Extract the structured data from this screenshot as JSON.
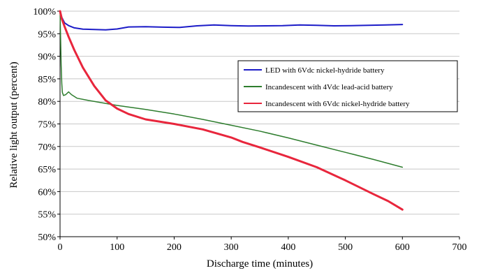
{
  "chart_data": {
    "type": "line",
    "title": "",
    "xlabel": "Discharge time (minutes)",
    "ylabel": "Relative light output (percent)",
    "xlim": [
      0,
      700
    ],
    "ylim": [
      50,
      100
    ],
    "x_ticks": [
      0,
      100,
      200,
      300,
      400,
      500,
      600,
      700
    ],
    "x_tick_labels": [
      "0",
      "100",
      "200",
      "300",
      "400",
      "500",
      "600",
      "700"
    ],
    "y_ticks": [
      50,
      55,
      60,
      65,
      70,
      75,
      80,
      85,
      90,
      95,
      100
    ],
    "y_tick_labels": [
      "50%",
      "55%",
      "60%",
      "65%",
      "70%",
      "75%",
      "80%",
      "85%",
      "90%",
      "95%",
      "100%"
    ],
    "grid": {
      "horizontal": true,
      "vertical": false
    },
    "legend_position": "right",
    "series": [
      {
        "name": "LED with 6Vdc nickel-hydride battery",
        "color": "#1c1cc8",
        "points": [
          [
            0,
            100
          ],
          [
            3,
            98.6
          ],
          [
            8,
            97.4
          ],
          [
            15,
            96.8
          ],
          [
            25,
            96.3
          ],
          [
            40,
            96.0
          ],
          [
            60,
            95.95
          ],
          [
            80,
            95.85
          ],
          [
            100,
            96.05
          ],
          [
            120,
            96.5
          ],
          [
            150,
            96.55
          ],
          [
            180,
            96.45
          ],
          [
            210,
            96.4
          ],
          [
            240,
            96.75
          ],
          [
            270,
            96.95
          ],
          [
            300,
            96.8
          ],
          [
            330,
            96.7
          ],
          [
            360,
            96.75
          ],
          [
            390,
            96.8
          ],
          [
            420,
            96.95
          ],
          [
            450,
            96.85
          ],
          [
            480,
            96.75
          ],
          [
            510,
            96.8
          ],
          [
            540,
            96.85
          ],
          [
            570,
            96.95
          ],
          [
            600,
            97.05
          ]
        ]
      },
      {
        "name": "Incandescent with 4Vdc lead-acid battery",
        "color": "#2e7d2e",
        "points": [
          [
            0,
            100
          ],
          [
            1,
            94
          ],
          [
            2,
            88
          ],
          [
            3,
            84
          ],
          [
            4,
            82
          ],
          [
            6,
            81.3
          ],
          [
            10,
            81.5
          ],
          [
            15,
            82.1
          ],
          [
            20,
            81.5
          ],
          [
            30,
            80.7
          ],
          [
            50,
            80.2
          ],
          [
            100,
            79.1
          ],
          [
            150,
            78.2
          ],
          [
            200,
            77.2
          ],
          [
            250,
            76.0
          ],
          [
            300,
            74.7
          ],
          [
            350,
            73.4
          ],
          [
            400,
            71.9
          ],
          [
            450,
            70.3
          ],
          [
            500,
            68.7
          ],
          [
            550,
            67.1
          ],
          [
            600,
            65.4
          ]
        ]
      },
      {
        "name": "Incandescent with 6Vdc nickel-hydride battery",
        "color": "#e8263c",
        "points": [
          [
            0,
            100
          ],
          [
            3,
            98.3
          ],
          [
            8,
            96.6
          ],
          [
            15,
            94.3
          ],
          [
            25,
            91.4
          ],
          [
            40,
            87.5
          ],
          [
            60,
            83.4
          ],
          [
            80,
            80.2
          ],
          [
            100,
            78.4
          ],
          [
            120,
            77.2
          ],
          [
            150,
            76.0
          ],
          [
            200,
            75.0
          ],
          [
            250,
            73.8
          ],
          [
            300,
            72.0
          ],
          [
            320,
            71.0
          ],
          [
            350,
            69.8
          ],
          [
            400,
            67.7
          ],
          [
            450,
            65.4
          ],
          [
            500,
            62.5
          ],
          [
            550,
            59.4
          ],
          [
            575,
            57.9
          ],
          [
            600,
            56.0
          ]
        ]
      }
    ]
  }
}
